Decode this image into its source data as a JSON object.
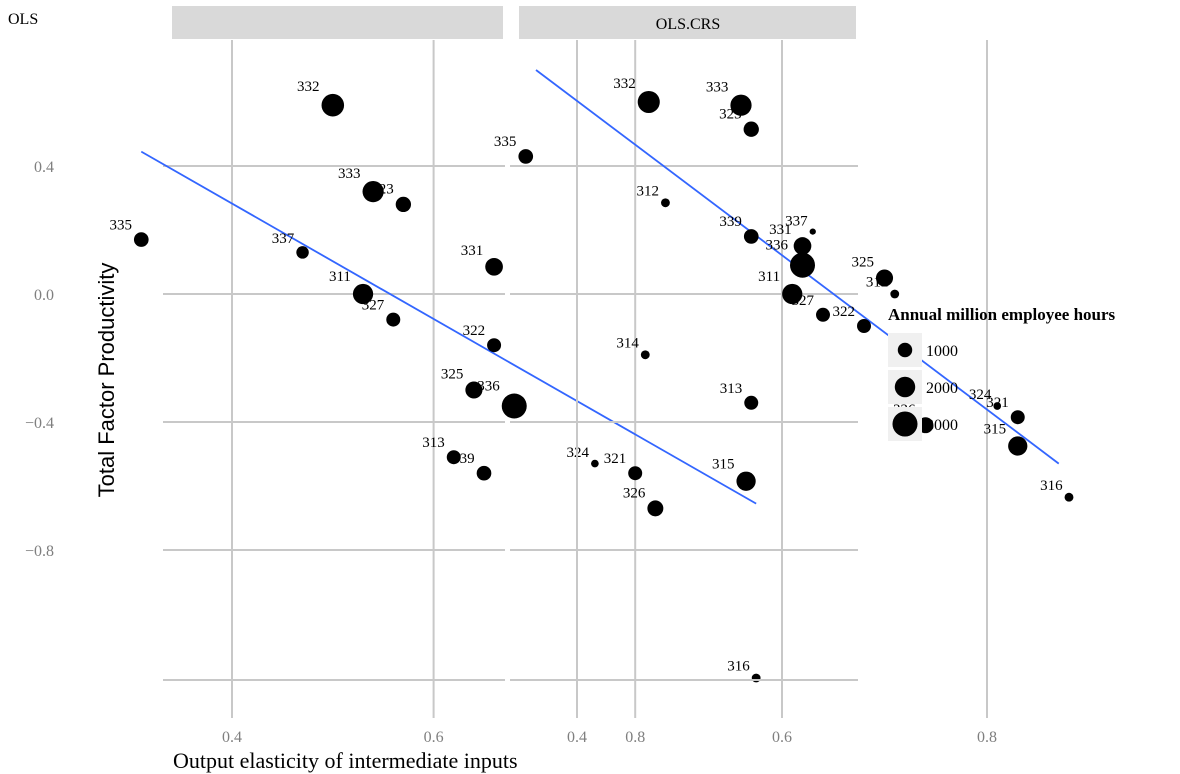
{
  "page_label": "OLS",
  "chart_data": {
    "type": "scatter",
    "xlabel": "Output elasticity of intermediate inputs",
    "ylabel": "Total Factor Productivity",
    "x_ticks": [
      "0.4",
      "0.6",
      "0.8"
    ],
    "x_tick_values": [
      0.4,
      0.6,
      0.8
    ],
    "y_ticks": [
      "0.4",
      "0.0",
      "−0.4",
      "−0.8"
    ],
    "y_tick_values": [
      0.4,
      0.0,
      -0.4,
      -0.8
    ],
    "legend": {
      "title": "Annual million employee hours",
      "entries": [
        {
          "label": "1000",
          "value": 1000
        },
        {
          "label": "2000",
          "value": 2000
        },
        {
          "label": "3000",
          "value": 3000
        }
      ],
      "placement": "right"
    },
    "grid": true,
    "panels": [
      {
        "strip": "",
        "xlim": [
          0.29,
          0.94
        ],
        "ylim": [
          -1.24,
          0.8
        ],
        "fit_line": [
          [
            0.31,
            0.445
          ],
          [
            0.92,
            -0.655
          ]
        ],
        "points": [
          {
            "label": "332",
            "x": 0.5,
            "y": 0.59,
            "size": 2600
          },
          {
            "label": "333",
            "x": 0.54,
            "y": 0.32,
            "size": 2300
          },
          {
            "label": "323",
            "x": 0.57,
            "y": 0.28,
            "size": 1200
          },
          {
            "label": "335",
            "x": 0.31,
            "y": 0.17,
            "size": 1100
          },
          {
            "label": "337",
            "x": 0.47,
            "y": 0.13,
            "size": 800
          },
          {
            "label": "331",
            "x": 0.66,
            "y": 0.085,
            "size": 1600
          },
          {
            "label": "311",
            "x": 0.53,
            "y": 0.0,
            "size": 2100
          },
          {
            "label": "327",
            "x": 0.56,
            "y": -0.08,
            "size": 1000
          },
          {
            "label": "312",
            "x": 0.83,
            "y": 0.285,
            "size": 400
          },
          {
            "label": "322",
            "x": 0.66,
            "y": -0.16,
            "size": 1000
          },
          {
            "label": "314",
            "x": 0.81,
            "y": -0.19,
            "size": 400
          },
          {
            "label": "325",
            "x": 0.64,
            "y": -0.3,
            "size": 1500
          },
          {
            "label": "336",
            "x": 0.68,
            "y": -0.35,
            "size": 3200
          },
          {
            "label": "313",
            "x": 0.62,
            "y": -0.51,
            "size": 1000
          },
          {
            "label": "339",
            "x": 0.65,
            "y": -0.56,
            "size": 1100
          },
          {
            "label": "324",
            "x": 0.76,
            "y": -0.53,
            "size": 300
          },
          {
            "label": "321",
            "x": 0.8,
            "y": -0.56,
            "size": 1000
          },
          {
            "label": "315",
            "x": 0.91,
            "y": -0.585,
            "size": 1900
          },
          {
            "label": "326",
            "x": 0.82,
            "y": -0.67,
            "size": 1300
          },
          {
            "label": "316",
            "x": 0.92,
            "y": -1.2,
            "size": 400
          }
        ]
      },
      {
        "strip": "OLS.CRS",
        "xlim": [
          0.29,
          0.94
        ],
        "ylim": [
          -1.24,
          0.8
        ],
        "fit_line": [
          [
            0.36,
            0.7
          ],
          [
            0.87,
            -0.53
          ]
        ],
        "points": [
          {
            "label": "332",
            "x": 0.47,
            "y": 0.6,
            "size": 2500
          },
          {
            "label": "333",
            "x": 0.56,
            "y": 0.59,
            "size": 2300
          },
          {
            "label": "323",
            "x": 0.57,
            "y": 0.515,
            "size": 1200
          },
          {
            "label": "335",
            "x": 0.35,
            "y": 0.43,
            "size": 1100
          },
          {
            "label": "339",
            "x": 0.57,
            "y": 0.18,
            "size": 1100
          },
          {
            "label": "331",
            "x": 0.62,
            "y": 0.15,
            "size": 1600
          },
          {
            "label": "337",
            "x": 0.63,
            "y": 0.195,
            "size": 200
          },
          {
            "label": "336",
            "x": 0.62,
            "y": 0.09,
            "size": 3200
          },
          {
            "label": "325",
            "x": 0.7,
            "y": 0.05,
            "size": 1500
          },
          {
            "label": "311",
            "x": 0.61,
            "y": 0.0,
            "size": 2100
          },
          {
            "label": "312",
            "x": 0.71,
            "y": 0.0,
            "size": 400
          },
          {
            "label": "327",
            "x": 0.64,
            "y": -0.065,
            "size": 1000
          },
          {
            "label": "322",
            "x": 0.68,
            "y": -0.1,
            "size": 1000
          },
          {
            "label": "313",
            "x": 0.57,
            "y": -0.34,
            "size": 1000
          },
          {
            "label": "324",
            "x": 0.81,
            "y": -0.35,
            "size": 300
          },
          {
            "label": "321",
            "x": 0.83,
            "y": -0.385,
            "size": 1000
          },
          {
            "label": "326",
            "x": 0.74,
            "y": -0.41,
            "size": 1300
          },
          {
            "label": "315",
            "x": 0.83,
            "y": -0.475,
            "size": 1900
          },
          {
            "label": "316",
            "x": 0.88,
            "y": -0.635,
            "size": 400
          }
        ]
      }
    ]
  },
  "colors": {
    "fit_line": "#3366ff",
    "grid": "#c8c8c8",
    "strip": "#d9d9d9",
    "tick_text": "#7f7f7f",
    "point": "#000000",
    "legend_key_bg": "#f0f0f0"
  }
}
